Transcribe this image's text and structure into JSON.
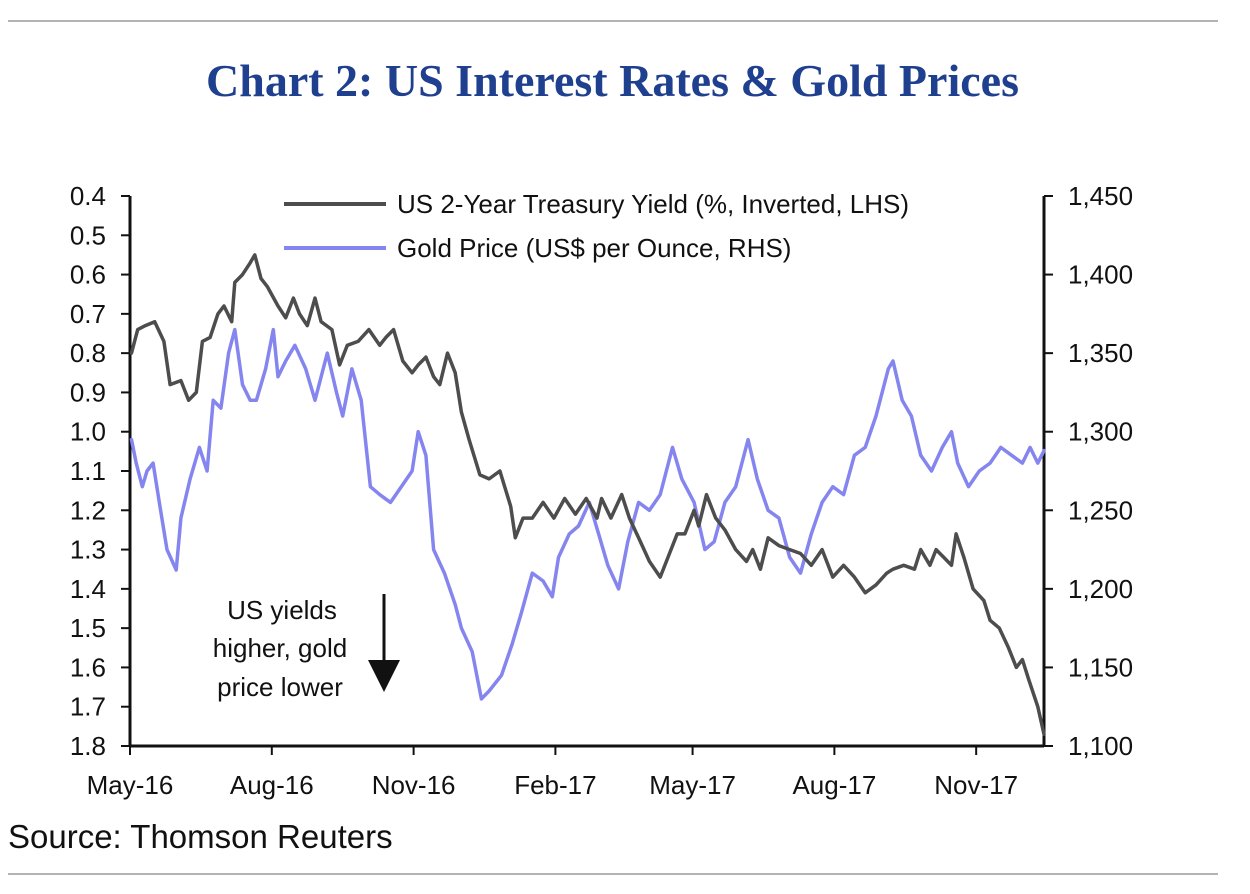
{
  "title": "Chart 2: US Interest Rates & Gold Prices",
  "source": "Source: Thomson Reuters",
  "colors": {
    "title": "#1f3f8f",
    "yield_line": "#4d4d4d",
    "gold_line": "#8585f0",
    "axis": "#111111"
  },
  "chart_data": {
    "type": "line",
    "x_range": [
      "2016-05-01",
      "2017-12-15"
    ],
    "x_ticks": [
      {
        "date": "2016-05-01",
        "label": "May-16"
      },
      {
        "date": "2016-08-01",
        "label": "Aug-16"
      },
      {
        "date": "2016-11-01",
        "label": "Nov-16"
      },
      {
        "date": "2017-02-01",
        "label": "Feb-17"
      },
      {
        "date": "2017-05-01",
        "label": "May-17"
      },
      {
        "date": "2017-08-01",
        "label": "Aug-17"
      },
      {
        "date": "2017-11-01",
        "label": "Nov-17"
      }
    ],
    "y_left": {
      "inverted": true,
      "range": [
        0.4,
        1.8
      ],
      "ticks": [
        "0.4",
        "0.5",
        "0.6",
        "0.7",
        "0.8",
        "0.9",
        "1.0",
        "1.1",
        "1.2",
        "1.3",
        "1.4",
        "1.5",
        "1.6",
        "1.7",
        "1.8"
      ]
    },
    "y_right": {
      "range": [
        1100,
        1450
      ],
      "ticks": [
        "1,450",
        "1,400",
        "1,350",
        "1,300",
        "1,250",
        "1,200",
        "1,150",
        "1,100"
      ]
    },
    "legend": {
      "placement": "top-center",
      "entries": [
        "US 2-Year Treasury Yield (%, Inverted, LHS)",
        "Gold Price (US$ per Ounce, RHS)"
      ]
    },
    "annotation": {
      "lines": [
        "US yields",
        "higher, gold",
        "price lower"
      ],
      "arrow": "down"
    },
    "series": [
      {
        "name": "US 2-Year Treasury Yield (%, Inverted, LHS)",
        "axis": "left",
        "points": [
          [
            "2016-05-02",
            0.8
          ],
          [
            "2016-05-06",
            0.74
          ],
          [
            "2016-05-11",
            0.73
          ],
          [
            "2016-05-17",
            0.72
          ],
          [
            "2016-05-23",
            0.77
          ],
          [
            "2016-05-27",
            0.88
          ],
          [
            "2016-06-03",
            0.87
          ],
          [
            "2016-06-08",
            0.92
          ],
          [
            "2016-06-13",
            0.9
          ],
          [
            "2016-06-17",
            0.77
          ],
          [
            "2016-06-22",
            0.76
          ],
          [
            "2016-06-27",
            0.7
          ],
          [
            "2016-07-01",
            0.68
          ],
          [
            "2016-07-06",
            0.72
          ],
          [
            "2016-07-08",
            0.62
          ],
          [
            "2016-07-13",
            0.6
          ],
          [
            "2016-07-18",
            0.57
          ],
          [
            "2016-07-21",
            0.55
          ],
          [
            "2016-07-25",
            0.61
          ],
          [
            "2016-07-29",
            0.63
          ],
          [
            "2016-08-05",
            0.68
          ],
          [
            "2016-08-10",
            0.71
          ],
          [
            "2016-08-15",
            0.66
          ],
          [
            "2016-08-19",
            0.7
          ],
          [
            "2016-08-24",
            0.73
          ],
          [
            "2016-08-29",
            0.66
          ],
          [
            "2016-09-02",
            0.72
          ],
          [
            "2016-09-09",
            0.74
          ],
          [
            "2016-09-14",
            0.83
          ],
          [
            "2016-09-19",
            0.78
          ],
          [
            "2016-09-26",
            0.77
          ],
          [
            "2016-10-03",
            0.74
          ],
          [
            "2016-10-10",
            0.78
          ],
          [
            "2016-10-14",
            0.76
          ],
          [
            "2016-10-19",
            0.74
          ],
          [
            "2016-10-25",
            0.82
          ],
          [
            "2016-10-31",
            0.85
          ],
          [
            "2016-11-04",
            0.83
          ],
          [
            "2016-11-09",
            0.81
          ],
          [
            "2016-11-14",
            0.86
          ],
          [
            "2016-11-18",
            0.88
          ],
          [
            "2016-11-23",
            0.8
          ],
          [
            "2016-11-28",
            0.85
          ],
          [
            "2016-12-02",
            0.95
          ],
          [
            "2016-12-07",
            1.02
          ],
          [
            "2016-12-14",
            1.11
          ],
          [
            "2016-12-20",
            1.12
          ],
          [
            "2016-12-27",
            1.1
          ],
          [
            "2017-01-03",
            1.19
          ],
          [
            "2017-01-06",
            1.27
          ],
          [
            "2017-01-11",
            1.22
          ],
          [
            "2017-01-17",
            1.22
          ],
          [
            "2017-01-24",
            1.18
          ],
          [
            "2017-01-31",
            1.22
          ],
          [
            "2017-02-07",
            1.17
          ],
          [
            "2017-02-14",
            1.21
          ],
          [
            "2017-02-21",
            1.17
          ],
          [
            "2017-02-28",
            1.22
          ],
          [
            "2017-03-03",
            1.17
          ],
          [
            "2017-03-09",
            1.22
          ],
          [
            "2017-03-16",
            1.16
          ],
          [
            "2017-03-21",
            1.22
          ],
          [
            "2017-03-27",
            1.27
          ],
          [
            "2017-04-03",
            1.33
          ],
          [
            "2017-04-10",
            1.37
          ],
          [
            "2017-04-14",
            1.33
          ],
          [
            "2017-04-21",
            1.26
          ],
          [
            "2017-04-26",
            1.26
          ],
          [
            "2017-05-02",
            1.2
          ],
          [
            "2017-05-05",
            1.24
          ],
          [
            "2017-05-10",
            1.16
          ],
          [
            "2017-05-16",
            1.22
          ],
          [
            "2017-05-22",
            1.25
          ],
          [
            "2017-05-29",
            1.3
          ],
          [
            "2017-06-05",
            1.33
          ],
          [
            "2017-06-09",
            1.3
          ],
          [
            "2017-06-14",
            1.35
          ],
          [
            "2017-06-19",
            1.27
          ],
          [
            "2017-06-26",
            1.29
          ],
          [
            "2017-07-03",
            1.3
          ],
          [
            "2017-07-10",
            1.31
          ],
          [
            "2017-07-17",
            1.34
          ],
          [
            "2017-07-24",
            1.3
          ],
          [
            "2017-07-31",
            1.37
          ],
          [
            "2017-08-07",
            1.34
          ],
          [
            "2017-08-14",
            1.37
          ],
          [
            "2017-08-21",
            1.41
          ],
          [
            "2017-08-28",
            1.39
          ],
          [
            "2017-09-04",
            1.36
          ],
          [
            "2017-09-08",
            1.35
          ],
          [
            "2017-09-15",
            1.34
          ],
          [
            "2017-09-22",
            1.35
          ],
          [
            "2017-09-26",
            1.3
          ],
          [
            "2017-10-02",
            1.34
          ],
          [
            "2017-10-06",
            1.3
          ],
          [
            "2017-10-11",
            1.32
          ],
          [
            "2017-10-16",
            1.34
          ],
          [
            "2017-10-19",
            1.26
          ],
          [
            "2017-10-24",
            1.32
          ],
          [
            "2017-10-30",
            1.4
          ],
          [
            "2017-11-06",
            1.43
          ],
          [
            "2017-11-10",
            1.48
          ],
          [
            "2017-11-16",
            1.5
          ],
          [
            "2017-11-22",
            1.55
          ],
          [
            "2017-11-27",
            1.6
          ],
          [
            "2017-12-01",
            1.58
          ],
          [
            "2017-12-05",
            1.63
          ],
          [
            "2017-12-11",
            1.7
          ],
          [
            "2017-12-15",
            1.77
          ]
        ]
      },
      {
        "name": "Gold Price (US$ per Ounce, RHS)",
        "axis": "right",
        "points": [
          [
            "2016-05-02",
            1295
          ],
          [
            "2016-05-05",
            1280
          ],
          [
            "2016-05-09",
            1265
          ],
          [
            "2016-05-12",
            1275
          ],
          [
            "2016-05-16",
            1280
          ],
          [
            "2016-05-20",
            1255
          ],
          [
            "2016-05-25",
            1225
          ],
          [
            "2016-05-31",
            1212
          ],
          [
            "2016-06-03",
            1245
          ],
          [
            "2016-06-09",
            1270
          ],
          [
            "2016-06-15",
            1290
          ],
          [
            "2016-06-20",
            1275
          ],
          [
            "2016-06-24",
            1320
          ],
          [
            "2016-06-29",
            1315
          ],
          [
            "2016-07-04",
            1350
          ],
          [
            "2016-07-08",
            1365
          ],
          [
            "2016-07-13",
            1330
          ],
          [
            "2016-07-18",
            1320
          ],
          [
            "2016-07-22",
            1320
          ],
          [
            "2016-07-28",
            1340
          ],
          [
            "2016-08-02",
            1365
          ],
          [
            "2016-08-05",
            1335
          ],
          [
            "2016-08-10",
            1345
          ],
          [
            "2016-08-16",
            1355
          ],
          [
            "2016-08-23",
            1340
          ],
          [
            "2016-08-29",
            1320
          ],
          [
            "2016-09-06",
            1350
          ],
          [
            "2016-09-12",
            1325
          ],
          [
            "2016-09-16",
            1310
          ],
          [
            "2016-09-22",
            1340
          ],
          [
            "2016-09-28",
            1320
          ],
          [
            "2016-10-04",
            1265
          ],
          [
            "2016-10-10",
            1260
          ],
          [
            "2016-10-17",
            1255
          ],
          [
            "2016-10-24",
            1265
          ],
          [
            "2016-10-31",
            1275
          ],
          [
            "2016-11-04",
            1300
          ],
          [
            "2016-11-09",
            1285
          ],
          [
            "2016-11-14",
            1225
          ],
          [
            "2016-11-21",
            1210
          ],
          [
            "2016-11-28",
            1190
          ],
          [
            "2016-12-02",
            1175
          ],
          [
            "2016-12-09",
            1160
          ],
          [
            "2016-12-15",
            1130
          ],
          [
            "2016-12-20",
            1135
          ],
          [
            "2016-12-28",
            1145
          ],
          [
            "2017-01-04",
            1165
          ],
          [
            "2017-01-10",
            1185
          ],
          [
            "2017-01-17",
            1210
          ],
          [
            "2017-01-24",
            1205
          ],
          [
            "2017-01-30",
            1195
          ],
          [
            "2017-02-03",
            1220
          ],
          [
            "2017-02-10",
            1235
          ],
          [
            "2017-02-16",
            1240
          ],
          [
            "2017-02-23",
            1255
          ],
          [
            "2017-03-01",
            1235
          ],
          [
            "2017-03-07",
            1215
          ],
          [
            "2017-03-14",
            1200
          ],
          [
            "2017-03-20",
            1230
          ],
          [
            "2017-03-27",
            1255
          ],
          [
            "2017-04-03",
            1250
          ],
          [
            "2017-04-10",
            1260
          ],
          [
            "2017-04-18",
            1290
          ],
          [
            "2017-04-24",
            1270
          ],
          [
            "2017-05-02",
            1255
          ],
          [
            "2017-05-09",
            1225
          ],
          [
            "2017-05-15",
            1230
          ],
          [
            "2017-05-22",
            1255
          ],
          [
            "2017-05-29",
            1265
          ],
          [
            "2017-06-06",
            1295
          ],
          [
            "2017-06-12",
            1270
          ],
          [
            "2017-06-19",
            1250
          ],
          [
            "2017-06-26",
            1245
          ],
          [
            "2017-07-03",
            1220
          ],
          [
            "2017-07-10",
            1210
          ],
          [
            "2017-07-17",
            1235
          ],
          [
            "2017-07-24",
            1255
          ],
          [
            "2017-07-31",
            1265
          ],
          [
            "2017-08-07",
            1260
          ],
          [
            "2017-08-14",
            1285
          ],
          [
            "2017-08-21",
            1290
          ],
          [
            "2017-08-28",
            1310
          ],
          [
            "2017-09-05",
            1340
          ],
          [
            "2017-09-08",
            1345
          ],
          [
            "2017-09-14",
            1320
          ],
          [
            "2017-09-20",
            1310
          ],
          [
            "2017-09-26",
            1285
          ],
          [
            "2017-10-03",
            1275
          ],
          [
            "2017-10-10",
            1290
          ],
          [
            "2017-10-16",
            1300
          ],
          [
            "2017-10-20",
            1280
          ],
          [
            "2017-10-27",
            1265
          ],
          [
            "2017-11-03",
            1275
          ],
          [
            "2017-11-10",
            1280
          ],
          [
            "2017-11-17",
            1290
          ],
          [
            "2017-11-24",
            1285
          ],
          [
            "2017-12-01",
            1280
          ],
          [
            "2017-12-06",
            1290
          ],
          [
            "2017-12-11",
            1280
          ],
          [
            "2017-12-15",
            1288
          ]
        ]
      }
    ]
  }
}
